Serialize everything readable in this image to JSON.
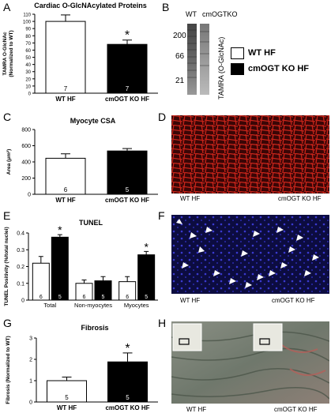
{
  "panels": {
    "A": {
      "letter": "A",
      "chart_data": {
        "type": "bar",
        "title": "Cardiac O-GlcNAcylated Proteins",
        "ylabel": "TAMRA O-GlcNAc\n(Normalized to WT)",
        "categories": [
          "WT HF",
          "cmOGT KO HF"
        ],
        "values": [
          100,
          68
        ],
        "errors": [
          9,
          6
        ],
        "n": [
          "7",
          "7"
        ],
        "fills": [
          "#ffffff",
          "#000000"
        ],
        "significance": [
          "",
          "*"
        ],
        "ylim": [
          0,
          110
        ],
        "yticks": [
          0,
          10,
          20,
          30,
          40,
          50,
          60,
          70,
          80,
          90,
          100,
          110
        ]
      }
    },
    "B": {
      "letter": "B",
      "lane_labels": [
        "WT",
        "cmOGTKO"
      ],
      "mw_markers": [
        "200",
        "66",
        "21"
      ],
      "side_label": "TAMRA (O-GlcNAc)"
    },
    "legend": {
      "items": [
        {
          "label": "WT HF",
          "color": "#ffffff"
        },
        {
          "label": "cmOGT KO HF",
          "color": "#000000"
        }
      ]
    },
    "C": {
      "letter": "C",
      "chart_data": {
        "type": "bar",
        "title": "Myocyte CSA",
        "ylabel": "Area (μm²)",
        "categories": [
          "WT HF",
          "cmOGT KO HF"
        ],
        "values": [
          445,
          535
        ],
        "errors": [
          55,
          30
        ],
        "n": [
          "6",
          "5"
        ],
        "fills": [
          "#ffffff",
          "#000000"
        ],
        "significance": [
          "",
          ""
        ],
        "ylim": [
          0,
          800
        ],
        "yticks": [
          0,
          200,
          400,
          600,
          800
        ]
      }
    },
    "D": {
      "letter": "D",
      "labels": [
        "WT HF",
        "cmOGT KO HF"
      ]
    },
    "E": {
      "letter": "E",
      "chart_data": {
        "type": "bar",
        "title": "TUNEL",
        "ylabel": "TUNEL Positivity (%/total nuclei)",
        "categories": [
          "Total",
          "Non-myocytes",
          "Myocytes"
        ],
        "series": [
          {
            "name": "WT HF",
            "values": [
              0.22,
              0.1,
              0.11
            ],
            "errors": [
              0.04,
              0.02,
              0.03
            ],
            "n": [
              "6",
              "6",
              "6"
            ],
            "significance": [
              "",
              "",
              ""
            ]
          },
          {
            "name": "cmOGT KO HF",
            "values": [
              0.375,
              0.115,
              0.27
            ],
            "errors": [
              0.015,
              0.025,
              0.02
            ],
            "n": [
              "5",
              "5",
              "5"
            ],
            "significance": [
              "*",
              "",
              "*"
            ]
          }
        ],
        "fills": [
          "#ffffff",
          "#000000"
        ],
        "ylim": [
          0,
          0.4
        ],
        "yticks": [
          0,
          0.1,
          0.2,
          0.3,
          0.4
        ],
        "ytick_labels": [
          "0",
          "0.1",
          "0.2",
          "0.3",
          "0.4"
        ]
      }
    },
    "F": {
      "letter": "F",
      "labels": [
        "WT HF",
        "cmOGT KO HF"
      ]
    },
    "G": {
      "letter": "G",
      "chart_data": {
        "type": "bar",
        "title": "Fibrosis",
        "ylabel": "Fibrosis (Normalized to WT)",
        "categories": [
          "WT HF",
          "cmOGT KO HF"
        ],
        "values": [
          1.0,
          1.88
        ],
        "errors": [
          0.17,
          0.42
        ],
        "n": [
          "5",
          "5"
        ],
        "fills": [
          "#ffffff",
          "#000000"
        ],
        "significance": [
          "",
          "*"
        ],
        "ylim": [
          0,
          3
        ],
        "yticks": [
          0,
          1,
          2,
          3
        ]
      }
    },
    "H": {
      "letter": "H",
      "labels": [
        "WT HF",
        "cmOGT KO HF"
      ]
    }
  }
}
